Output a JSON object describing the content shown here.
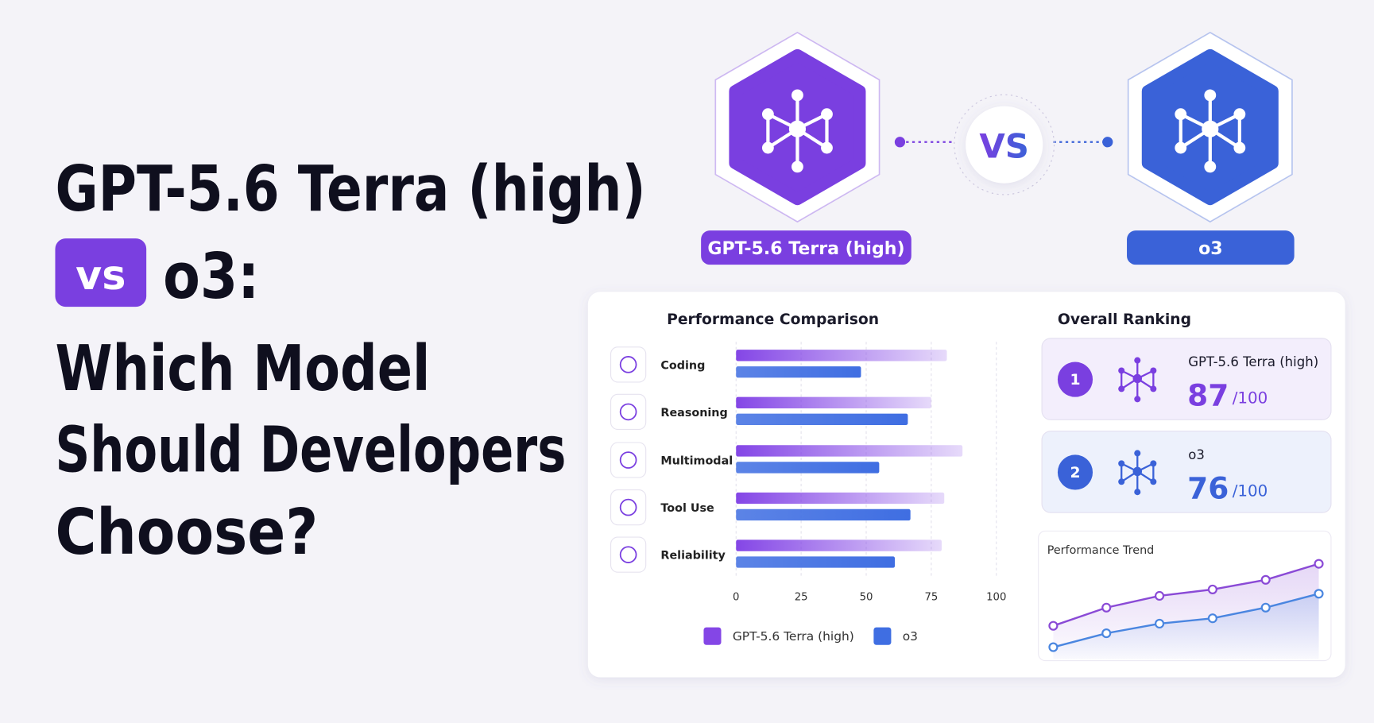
{
  "header": {
    "line1": "GPT-5.6 Terra (high)",
    "badge": "vs",
    "line2": "o3:",
    "line3": "Which Model",
    "line4": "Should Developers",
    "line5": "Choose?"
  },
  "models": [
    {
      "label": "GPT-5.6 Terra (high)",
      "color": "#7a3fe0"
    },
    {
      "label": "o3",
      "color": "#3a62d8"
    }
  ],
  "vs_text": "VS",
  "chart_data": [
    {
      "type": "hbar",
      "title": "Performance Comparison",
      "categories": [
        "Coding",
        "Reasoning",
        "Multimodal",
        "Tool Use",
        "Reliability"
      ],
      "series": [
        {
          "name": "GPT-5.6 Terra (high)",
          "color": "#8446e6",
          "values": [
            81,
            75,
            87,
            80,
            79
          ]
        },
        {
          "name": "o3",
          "color": "#3f6ee2",
          "values": [
            48,
            66,
            55,
            67,
            61
          ]
        }
      ],
      "xlim": [
        0,
        100
      ],
      "xticks": [
        0,
        25,
        50,
        75,
        100
      ],
      "grid": true
    },
    {
      "type": "line",
      "title": "Performance Trend",
      "series": [
        {
          "name": "GPT-5.6 Terra (high)",
          "color": "#8a4ad6",
          "values": [
            31,
            48,
            59,
            65,
            74,
            89
          ]
        },
        {
          "name": "o3",
          "color": "#4a86e0",
          "values": [
            11,
            24,
            33,
            38,
            48,
            61
          ]
        }
      ],
      "ylim": [
        0,
        100
      ]
    }
  ],
  "ranking": {
    "title": "Overall Ranking",
    "entries": [
      {
        "rank": 1,
        "name": "GPT-5.6 Terra (high)",
        "score": 87,
        "suffix": "/100",
        "color": "#7a3fe0",
        "bg": "#f3eefc"
      },
      {
        "rank": 2,
        "name": "o3",
        "score": 76,
        "suffix": "/100",
        "color": "#3a62d8",
        "bg": "#edf1fc"
      }
    ]
  }
}
